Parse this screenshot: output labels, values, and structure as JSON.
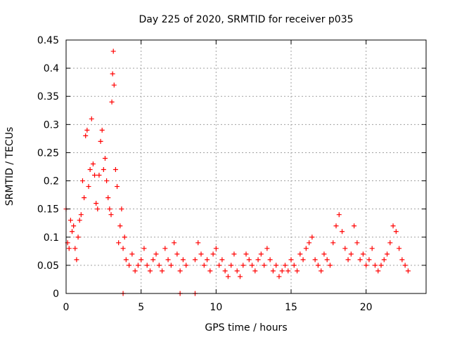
{
  "chart_data": {
    "type": "scatter",
    "title": "Day 225 of 2020, SRMTID for receiver p035",
    "xlabel": "GPS time / hours",
    "ylabel": "SRMTID / TECUs",
    "xlim": [
      0,
      24.0
    ],
    "ylim": [
      0,
      0.45
    ],
    "grid": true,
    "x_ticks": [
      0,
      5,
      10,
      15,
      20
    ],
    "x_tick_labels": [
      "0",
      "5",
      "10",
      "15",
      "20"
    ],
    "y_ticks": [
      0,
      0.05,
      0.1,
      0.15,
      0.2,
      0.25,
      0.3,
      0.35,
      0.4,
      0.45
    ],
    "y_tick_labels": [
      "0",
      "0.05",
      "0.1",
      "0.15",
      "0.2",
      "0.25",
      "0.3",
      "0.35",
      "0.4",
      "0.45"
    ],
    "marker": "plus",
    "color": "#ff0000",
    "series": [
      {
        "name": "p035",
        "x": [
          0.0,
          0.1,
          0.2,
          0.3,
          0.4,
          0.5,
          0.6,
          0.7,
          0.8,
          0.9,
          1.0,
          1.1,
          1.2,
          1.3,
          1.4,
          1.5,
          1.6,
          1.7,
          1.8,
          1.9,
          2.0,
          2.1,
          2.2,
          2.3,
          2.4,
          2.5,
          2.6,
          2.7,
          2.8,
          2.9,
          3.0,
          3.05,
          3.1,
          3.15,
          3.2,
          3.3,
          3.4,
          3.5,
          3.6,
          3.7,
          3.8,
          3.9,
          4.0,
          4.2,
          4.4,
          4.6,
          4.8,
          5.0,
          5.2,
          5.4,
          5.6,
          5.8,
          6.0,
          6.2,
          6.4,
          6.6,
          6.8,
          7.0,
          7.2,
          7.4,
          7.6,
          7.8,
          8.0,
          8.6,
          8.8,
          9.0,
          9.2,
          9.4,
          9.6,
          9.8,
          10.0,
          10.2,
          10.4,
          10.6,
          10.8,
          11.0,
          11.2,
          11.4,
          11.6,
          11.8,
          12.0,
          12.2,
          12.4,
          12.6,
          12.8,
          13.0,
          13.2,
          13.4,
          13.6,
          13.8,
          14.0,
          14.2,
          14.4,
          14.6,
          14.8,
          15.0,
          15.2,
          15.4,
          15.6,
          15.8,
          16.0,
          16.2,
          16.4,
          16.6,
          16.8,
          17.0,
          17.2,
          17.4,
          17.6,
          17.8,
          18.0,
          18.2,
          18.4,
          18.6,
          18.8,
          19.0,
          19.2,
          19.4,
          19.6,
          19.8,
          20.0,
          20.2,
          20.4,
          20.6,
          20.8,
          21.0,
          21.2,
          21.4,
          21.6,
          21.8,
          22.0,
          22.2,
          22.4,
          22.6,
          22.8,
          3.8,
          7.6,
          8.6
        ],
        "y": [
          0.15,
          0.09,
          0.08,
          0.13,
          0.11,
          0.12,
          0.08,
          0.06,
          0.1,
          0.13,
          0.14,
          0.2,
          0.17,
          0.28,
          0.29,
          0.19,
          0.22,
          0.31,
          0.23,
          0.21,
          0.16,
          0.15,
          0.21,
          0.27,
          0.29,
          0.22,
          0.24,
          0.2,
          0.17,
          0.15,
          0.14,
          0.34,
          0.39,
          0.43,
          0.37,
          0.22,
          0.19,
          0.09,
          0.12,
          0.15,
          0.08,
          0.1,
          0.06,
          0.05,
          0.07,
          0.04,
          0.05,
          0.06,
          0.08,
          0.05,
          0.04,
          0.06,
          0.07,
          0.05,
          0.04,
          0.08,
          0.06,
          0.05,
          0.09,
          0.07,
          0.04,
          0.06,
          0.05,
          0.06,
          0.09,
          0.07,
          0.05,
          0.06,
          0.04,
          0.07,
          0.08,
          0.05,
          0.06,
          0.04,
          0.03,
          0.05,
          0.07,
          0.04,
          0.03,
          0.05,
          0.07,
          0.06,
          0.05,
          0.04,
          0.06,
          0.07,
          0.05,
          0.08,
          0.06,
          0.04,
          0.05,
          0.03,
          0.04,
          0.05,
          0.04,
          0.06,
          0.05,
          0.04,
          0.07,
          0.06,
          0.08,
          0.09,
          0.1,
          0.06,
          0.05,
          0.04,
          0.07,
          0.06,
          0.05,
          0.09,
          0.12,
          0.14,
          0.11,
          0.08,
          0.06,
          0.07,
          0.12,
          0.09,
          0.06,
          0.07,
          0.05,
          0.06,
          0.08,
          0.05,
          0.04,
          0.05,
          0.06,
          0.07,
          0.09,
          0.12,
          0.11,
          0.08,
          0.06,
          0.05,
          0.04,
          0.0,
          0.0,
          0.0
        ]
      }
    ]
  }
}
